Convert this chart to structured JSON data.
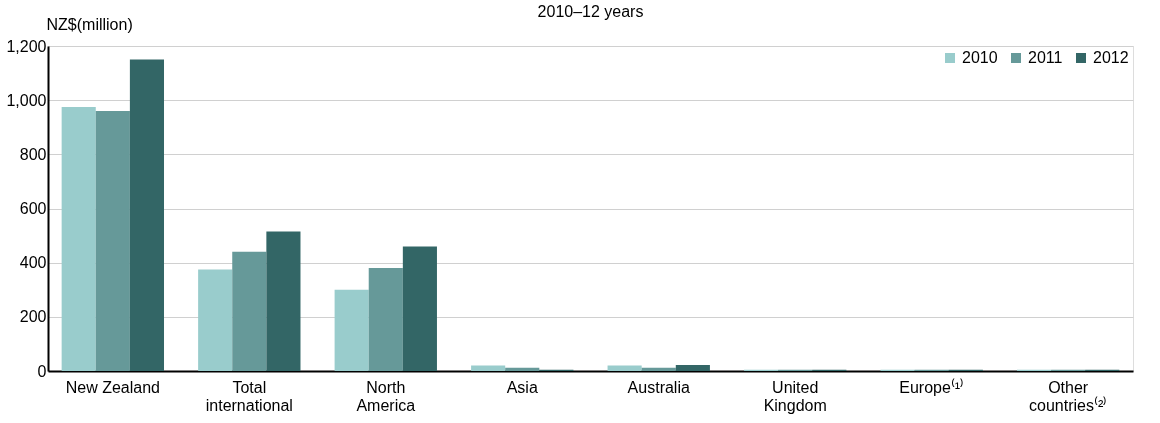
{
  "chart_data": {
    "type": "bar",
    "title": "2010–12 years",
    "ylabel": "NZ$(million)",
    "categories": [
      "New Zealand",
      "Total\ninternational",
      "North\nAmerica",
      "Asia",
      "Australia",
      "United\nKingdom",
      "Europe⁽¹⁾",
      "Other\ncountries⁽²⁾"
    ],
    "series": [
      {
        "name": "2010",
        "color": "#99cccc",
        "values": [
          975,
          375,
          300,
          20,
          20,
          5,
          5,
          5
        ]
      },
      {
        "name": "2011",
        "color": "#669999",
        "values": [
          960,
          440,
          380,
          12,
          12,
          5,
          5,
          5
        ]
      },
      {
        "name": "2012",
        "color": "#336666",
        "values": [
          1150,
          515,
          460,
          5,
          22,
          5,
          5,
          5
        ]
      }
    ],
    "ylim": [
      0,
      1200
    ],
    "yticks": [
      0,
      200,
      400,
      600,
      800,
      {
        "value": 1000,
        "label": "1,000"
      },
      {
        "value": 1200,
        "label": "1,200"
      }
    ],
    "grid": "y",
    "legend": "top right"
  }
}
